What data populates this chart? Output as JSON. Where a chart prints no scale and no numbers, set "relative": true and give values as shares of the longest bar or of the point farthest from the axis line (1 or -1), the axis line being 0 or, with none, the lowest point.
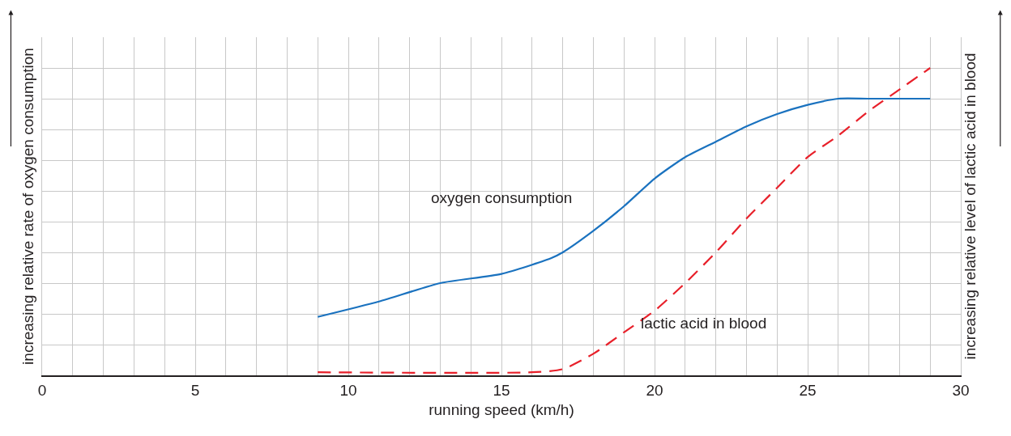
{
  "chart_data": {
    "type": "line",
    "relative": true,
    "xlabel": "running speed (km/h)",
    "ylabel": "increasing relative rate of oxygen consumption",
    "y2label": "increasing relative level of lactic acid in blood",
    "xlim": [
      0,
      30
    ],
    "xticks": [
      0,
      {
        "value": 1,
        "label": null
      },
      {
        "value": 2,
        "label": null
      },
      {
        "value": 3,
        "label": null
      },
      {
        "value": 4,
        "label": null
      },
      5,
      {
        "value": 6,
        "label": null
      },
      {
        "value": 7,
        "label": null
      },
      {
        "value": 8,
        "label": null
      },
      {
        "value": 9,
        "label": null
      },
      10,
      {
        "value": 11,
        "label": null
      },
      {
        "value": 12,
        "label": null
      },
      {
        "value": 13,
        "label": null
      },
      {
        "value": 14,
        "label": null
      },
      15,
      {
        "value": 16,
        "label": null
      },
      {
        "value": 17,
        "label": null
      },
      {
        "value": 18,
        "label": null
      },
      {
        "value": 19,
        "label": null
      },
      20,
      {
        "value": 21,
        "label": null
      },
      {
        "value": 22,
        "label": null
      },
      {
        "value": 23,
        "label": null
      },
      {
        "value": 24,
        "label": null
      },
      25,
      {
        "value": 26,
        "label": null
      },
      {
        "value": 27,
        "label": null
      },
      {
        "value": 28,
        "label": null
      },
      {
        "value": 29,
        "label": null
      },
      30
    ],
    "grid": true,
    "legend": false,
    "marker": "none",
    "series": [
      {
        "name": "oxygen consumption",
        "color": "#1a72bf",
        "line_style": "solid",
        "x": [
          9,
          11,
          13,
          15,
          16.6,
          17,
          18,
          19,
          20,
          21,
          22,
          23,
          24,
          25,
          26,
          27,
          29
        ],
        "values": [
          0.19,
          0.24,
          0.3,
          0.33,
          0.38,
          0.4,
          0.47,
          0.55,
          0.64,
          0.71,
          0.76,
          0.81,
          0.85,
          0.88,
          0.9,
          0.9,
          0.9
        ]
      },
      {
        "name": "lactic acid in blood",
        "color": "#e8202a",
        "line_style": "dashed",
        "x": [
          9,
          16,
          17,
          18,
          19,
          20,
          21,
          22,
          23,
          24,
          25,
          26,
          27,
          28,
          29
        ],
        "values": [
          0.01,
          0.01,
          0.02,
          0.07,
          0.14,
          0.21,
          0.3,
          0.4,
          0.51,
          0.61,
          0.71,
          0.78,
          0.86,
          0.93,
          1
        ]
      }
    ]
  }
}
